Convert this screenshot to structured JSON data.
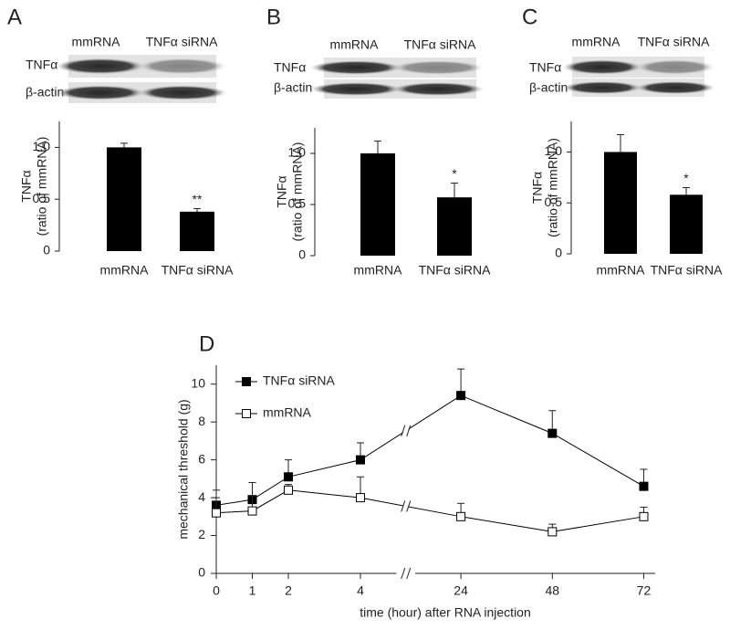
{
  "chart_data": [
    {
      "type": "bar",
      "panel": "A",
      "blot": {
        "lanes": [
          "mmRNA",
          "TNFα siRNA"
        ],
        "rows": [
          "TNFα",
          "β-actin"
        ]
      },
      "categories": [
        "mmRNA",
        "TNFα siRNA"
      ],
      "values": [
        1.0,
        0.38
      ],
      "errors": [
        0.04,
        0.03
      ],
      "color": "#000000",
      "ylabel": [
        "TNFα",
        "(ratio of mmRNA)"
      ],
      "ylim": [
        0,
        1.25
      ],
      "yticks": [
        0,
        0.5,
        {
          "value": 1,
          "label": "1.0"
        }
      ],
      "annotations": [
        {
          "category": "TNFα siRNA",
          "text": "**"
        }
      ]
    },
    {
      "type": "bar",
      "panel": "B",
      "blot": {
        "lanes": [
          "mmRNA",
          "TNFα siRNA"
        ],
        "rows": [
          "TNFα",
          "β-actin"
        ]
      },
      "categories": [
        "mmRNA",
        "TNFα siRNA"
      ],
      "values": [
        1.0,
        0.57
      ],
      "errors": [
        0.12,
        0.14
      ],
      "color": "#000000",
      "ylabel": [
        "TNFα",
        "(ratio of mmRNA)"
      ],
      "ylim": [
        0,
        1.25
      ],
      "yticks": [
        0,
        0.5,
        {
          "value": 1,
          "label": "1.0"
        }
      ],
      "annotations": [
        {
          "category": "TNFα siRNA",
          "text": "*"
        }
      ]
    },
    {
      "type": "bar",
      "panel": "C",
      "blot": {
        "lanes": [
          "mmRNA",
          "TNFα siRNA"
        ],
        "rows": [
          "TNFα",
          "β-actin"
        ]
      },
      "categories": [
        "mmRNA",
        "TNFα siRNA"
      ],
      "values": [
        1.0,
        0.58
      ],
      "errors": [
        0.17,
        0.07
      ],
      "color": "#000000",
      "ylabel": [
        "TNFα",
        "(ratio of mmRNA)"
      ],
      "ylim": [
        0,
        1.3
      ],
      "yticks": [
        0,
        0.5,
        {
          "value": 1,
          "label": "1.0"
        }
      ],
      "annotations": [
        {
          "category": "TNFα siRNA",
          "text": "*"
        }
      ]
    },
    {
      "type": "line",
      "panel": "D",
      "x": [
        0,
        1,
        2,
        4,
        24,
        48,
        72
      ],
      "x_segments": [
        {
          "xlim": [
            0,
            5
          ],
          "xticks": [
            0,
            1,
            2,
            4
          ]
        },
        {
          "xlim": [
            12,
            75
          ],
          "xticks": [
            24,
            48,
            72
          ]
        }
      ],
      "xlabel": "time (hour) after RNA injection",
      "ylabel": "mechanical threshold (g)",
      "ylim": [
        0,
        11
      ],
      "yticks": [
        0,
        2,
        4,
        6,
        8,
        10
      ],
      "series": [
        {
          "name": "TNFα siRNA",
          "color": "#000000",
          "marker_fill": "#000000",
          "values": [
            3.6,
            3.9,
            5.1,
            6.0,
            9.4,
            7.4,
            4.6
          ],
          "errors": [
            0.8,
            0.9,
            0.9,
            0.9,
            1.4,
            1.2,
            0.9
          ]
        },
        {
          "name": "mmRNA",
          "color": "#000000",
          "marker_fill": "#ffffff",
          "values": [
            3.2,
            3.3,
            4.4,
            4.0,
            3.0,
            2.2,
            3.0
          ],
          "errors": [
            0.8,
            0.8,
            0.3,
            1.1,
            0.7,
            0.4,
            0.5
          ]
        }
      ]
    }
  ]
}
